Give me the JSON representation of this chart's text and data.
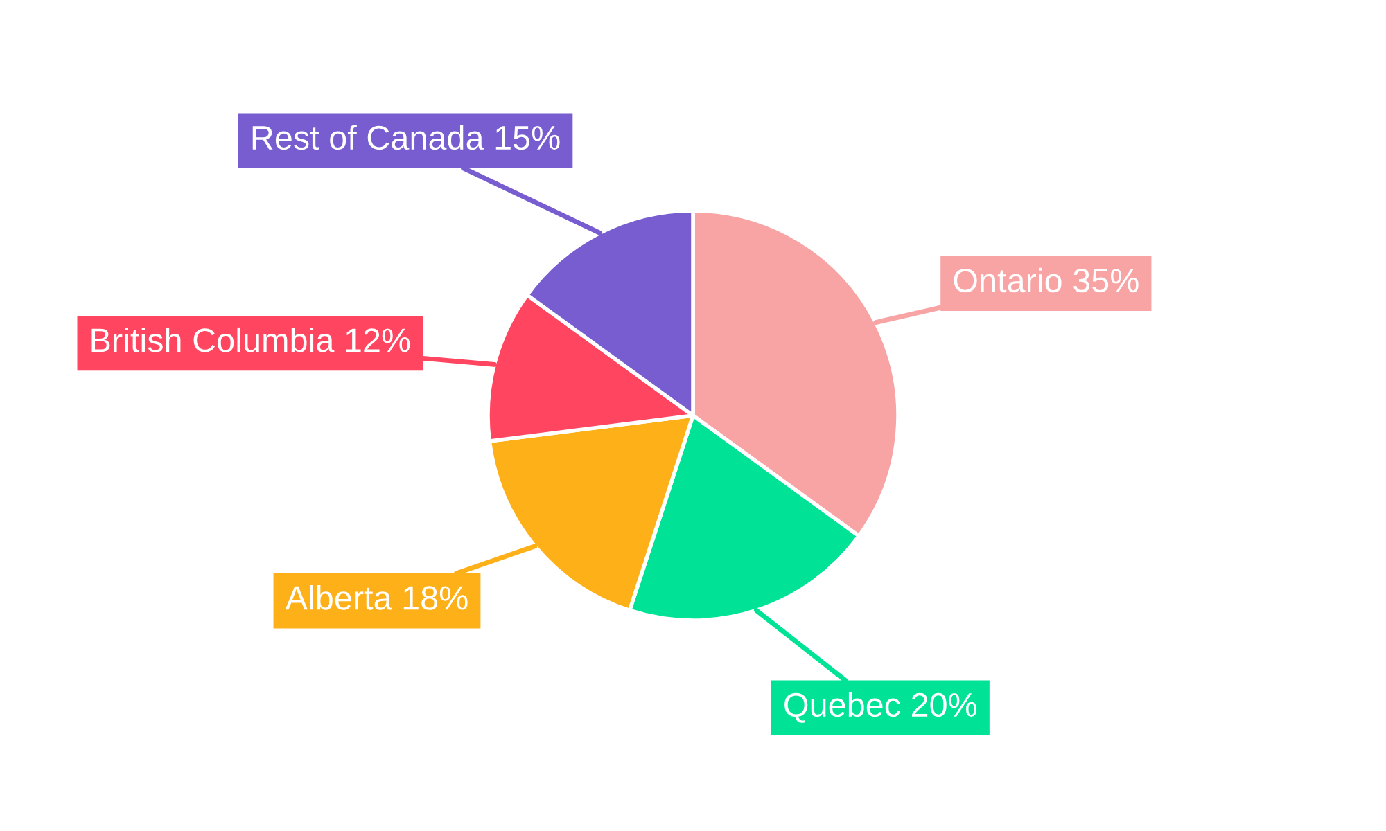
{
  "chart_data": {
    "type": "pie",
    "categories": [
      "Ontario",
      "Quebec",
      "Alberta",
      "British Columbia",
      "Rest of Canada"
    ],
    "values": [
      35,
      20,
      18,
      12,
      15
    ],
    "colors": [
      "#f8a3a4",
      "#00e396",
      "#feb019",
      "#ff4560",
      "#775dd0"
    ],
    "value_labels": [
      "35%",
      "20%",
      "18%",
      "12%",
      "15%"
    ]
  }
}
